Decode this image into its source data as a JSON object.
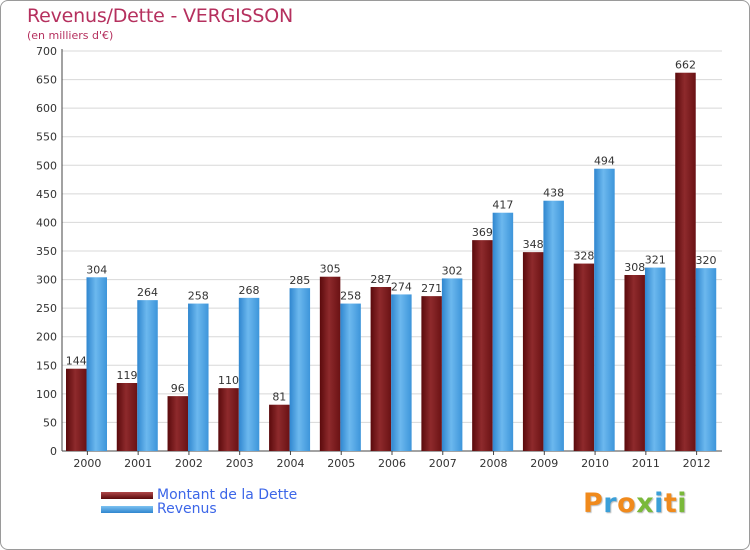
{
  "chart_data": {
    "type": "bar",
    "title": "Revenus/Dette - VERGISSON",
    "subtitle": "(en milliers d'€)",
    "xlabel": "",
    "ylabel": "",
    "ylim": [
      0,
      700
    ],
    "yticks": [
      0,
      50,
      100,
      150,
      200,
      250,
      300,
      350,
      400,
      450,
      500,
      550,
      600,
      650,
      700
    ],
    "grid": true,
    "categories": [
      "2000",
      "2001",
      "2002",
      "2003",
      "2004",
      "2005",
      "2006",
      "2007",
      "2008",
      "2009",
      "2010",
      "2011",
      "2012"
    ],
    "series": [
      {
        "name": "Montant de la Dette",
        "color": "#7a1618",
        "values": [
          144,
          119,
          96,
          110,
          81,
          305,
          287,
          271,
          369,
          348,
          328,
          308,
          662
        ]
      },
      {
        "name": "Revenus",
        "color": "#4aa3e6",
        "values": [
          304,
          264,
          258,
          268,
          285,
          258,
          274,
          302,
          417,
          438,
          494,
          321,
          320
        ]
      }
    ],
    "legend_position": "bottom-left"
  },
  "logo": {
    "letters": [
      "P",
      "r",
      "o",
      "x",
      "i",
      "t",
      "i"
    ],
    "colors": [
      "#f08a1c",
      "#3a9fd8",
      "#f08a1c",
      "#7ab93a",
      "#3a9fd8",
      "#f08a1c",
      "#7ab93a"
    ]
  }
}
